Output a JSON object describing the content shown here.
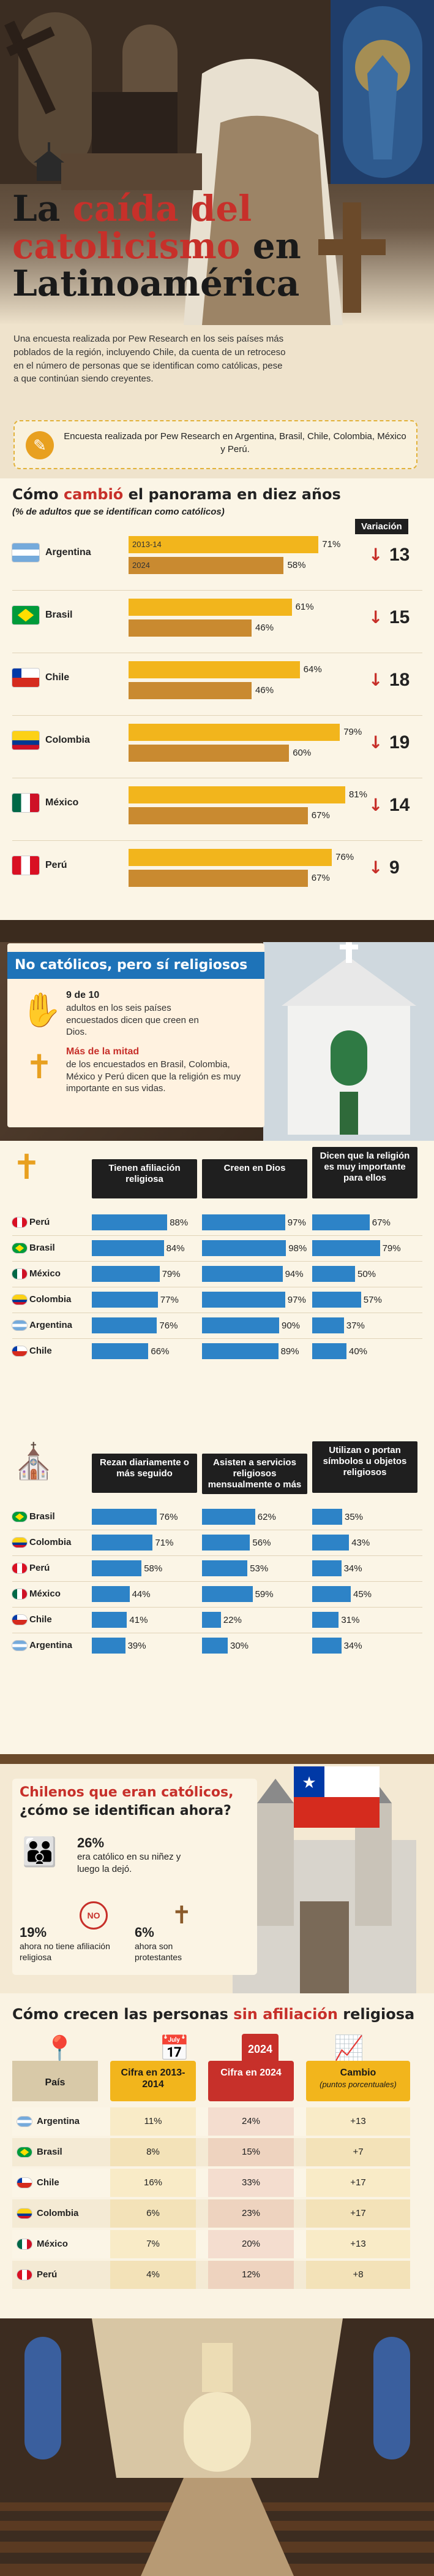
{
  "hero": {
    "title_a": "La ",
    "title_b": "caída del",
    "title_c": "catolicismo",
    " title_d": "",
    "title_e": " en",
    "title_f": "Latinoamérica"
  },
  "intro": {
    "text": "Una encuesta realizada por Pew Research en los seis países más poblados de la región, incluyendo Chile, da cuenta de un retroceso en el número de personas que se identifican como católicas, pese a que continúan siendo creyentes.",
    "source": "Encuesta realizada por Pew Research en Argentina, Brasil, Chile, Colombia, México y Perú."
  },
  "s1": {
    "title_a": "Cómo ",
    "title_b": "cambió",
    "title_c": " el panorama en diez años",
    "subtitle": "(% de adultos que se identifican como católicos)",
    "variacion": "Variación",
    "legend_2013": "2013-14",
    "legend_2024": "2024"
  },
  "chart_data": [
    {
      "type": "bar",
      "title": "Cómo cambió el panorama en diez años",
      "subtitle": "(% de adultos que se identifican como católicos)",
      "categories": [
        "Argentina",
        "Brasil",
        "Chile",
        "Colombia",
        "México",
        "Perú"
      ],
      "series": [
        {
          "name": "2013-14",
          "values": [
            71,
            61,
            64,
            79,
            81,
            76
          ]
        },
        {
          "name": "2024",
          "values": [
            58,
            46,
            46,
            60,
            67,
            67
          ]
        }
      ],
      "variacion": [
        13,
        15,
        18,
        19,
        14,
        9
      ],
      "colors": {
        "2013-14": "#f2b51c",
        "2024": "#c98a30"
      }
    },
    {
      "type": "bar",
      "categories": [
        "Perú",
        "Brasil",
        "México",
        "Colombia",
        "Argentina",
        "Chile"
      ],
      "series": [
        {
          "name": "Tienen afiliación religiosa",
          "values": [
            88,
            84,
            79,
            77,
            76,
            66
          ]
        },
        {
          "name": "Creen en Dios",
          "values": [
            97,
            98,
            94,
            97,
            90,
            89
          ]
        },
        {
          "name": "Dicen que la religión es muy importante para ellos",
          "values": [
            67,
            79,
            50,
            57,
            37,
            40
          ]
        }
      ]
    },
    {
      "type": "bar",
      "categories": [
        "Brasil",
        "Colombia",
        "Perú",
        "México",
        "Chile",
        "Argentina"
      ],
      "series": [
        {
          "name": "Rezan diariamente o más seguido",
          "values": [
            76,
            71,
            58,
            44,
            41,
            39
          ]
        },
        {
          "name": "Asisten a servicios religiosos mensualmente o más",
          "values": [
            62,
            56,
            53,
            59,
            22,
            30
          ]
        },
        {
          "name": "Utilizan o portan símbolos u objetos religiosos",
          "values": [
            35,
            43,
            34,
            45,
            31,
            34
          ]
        }
      ]
    },
    {
      "type": "table",
      "title": "Cómo crecen las personas sin afiliación religiosa",
      "columns": [
        "País",
        "Cifra en 2013-2014",
        "Cifra en 2024",
        "Cambio (puntos porcentuales)"
      ],
      "rows": [
        [
          "Argentina",
          "11%",
          "24%",
          "+13"
        ],
        [
          "Brasil",
          "8%",
          "15%",
          "+7"
        ],
        [
          "Chile",
          "16%",
          "33%",
          "+17"
        ],
        [
          "Colombia",
          "6%",
          "23%",
          "+17"
        ],
        [
          "México",
          "7%",
          "20%",
          "+13"
        ],
        [
          "Perú",
          "4%",
          "12%",
          "+8"
        ]
      ]
    }
  ],
  "s2": {
    "title": "No católicos, pero sí religiosos",
    "f1_big": "9 de 10",
    "f1_text": "adultos en los seis países encuestados dicen que creen en Dios.",
    "f2_big": "Más de la mitad",
    "f2_text": "de los encuestados en Brasil, Colombia, México y Perú dicen que la religión es muy importante en sus vidas."
  },
  "s3": {
    "pct": "%"
  },
  "s4": {
    "title_a": "Chilenos que eran católicos,",
    "title_b": "¿cómo se identifican ahora?",
    "p1": "26%",
    "p1_text": "era católico en su niñez y luego la dejó.",
    "p2": "19%",
    "p2_text": "ahora no tiene afiliación religiosa",
    "p3": "6%",
    "p3_text": "ahora son protestantes",
    "no": "NO"
  },
  "s5": {
    "title_a": "Cómo crecen las personas ",
    "title_b": "sin afiliación",
    "title_c": " religiosa",
    "h1": "País",
    "h2": "Cifra en 2013-2014",
    "h3": "Cifra en 2024",
    "h4": "Cambio",
    "h4b": "(puntos porcentuales)",
    "cal": "2024"
  },
  "colors": {
    "gold": "#f2b51c",
    "bronze": "#c98a30",
    "blue": "#2d83c7",
    "red": "#c7302a"
  }
}
